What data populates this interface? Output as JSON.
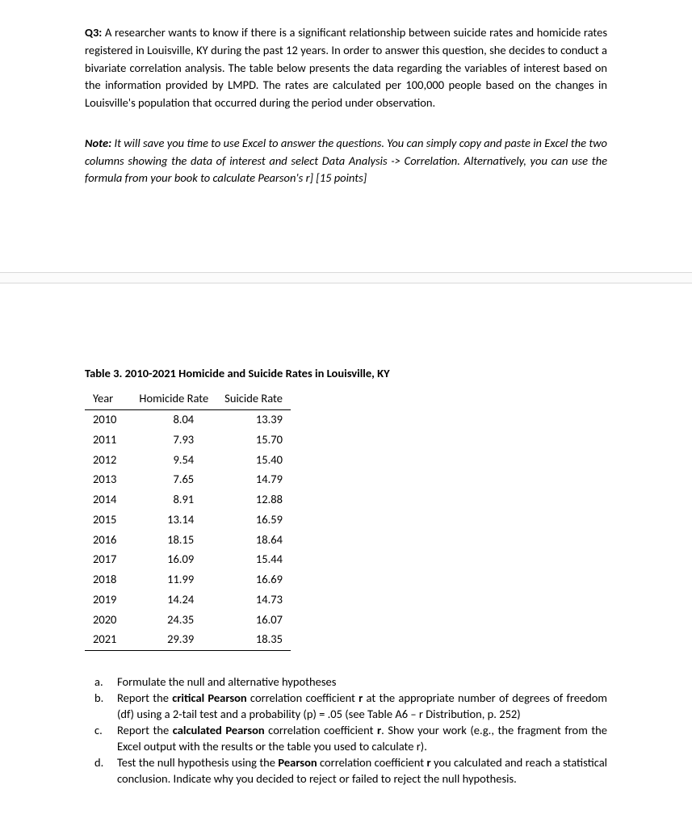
{
  "question": {
    "label": "Q3:",
    "body": "A researcher wants to know if there is a significant relationship between suicide rates and homicide rates registered in Louisville, KY during the past 12 years. In order to answer this question, she decides to conduct a bivariate correlation analysis. The table below presents the data regarding the variables of interest based on the information provided by LMPD. The rates are calculated per 100,000 people based on the changes in Louisville's population that occurred during the period under observation."
  },
  "note": {
    "label": "Note:",
    "body": "It will save you time to use Excel to answer the questions. You can simply copy and paste in Excel the two columns showing the data of interest and select Data Analysis -> Correlation. Alternatively, you can use the formula from your book to calculate Pearson's r] [15 points]"
  },
  "table": {
    "title": "Table 3. 2010-2021 Homicide and Suicide Rates in Louisville, KY",
    "columns": [
      "Year",
      "Homicide Rate",
      "Suicide Rate"
    ],
    "rows": [
      [
        "2010",
        "8.04",
        "13.39"
      ],
      [
        "2011",
        "7.93",
        "15.70"
      ],
      [
        "2012",
        "9.54",
        "15.40"
      ],
      [
        "2013",
        "7.65",
        "14.79"
      ],
      [
        "2014",
        "8.91",
        "12.88"
      ],
      [
        "2015",
        "13.14",
        "16.59"
      ],
      [
        "2016",
        "18.15",
        "18.64"
      ],
      [
        "2017",
        "16.09",
        "15.44"
      ],
      [
        "2018",
        "11.99",
        "16.69"
      ],
      [
        "2019",
        "14.24",
        "14.73"
      ],
      [
        "2020",
        "24.35",
        "16.07"
      ],
      [
        "2021",
        "29.39",
        "18.35"
      ]
    ]
  },
  "subq": {
    "a": {
      "m": "a.",
      "t1": "Formulate the null and alternative hypotheses"
    },
    "b": {
      "m": "b.",
      "t1": "Report the ",
      "t2": "critical Pearson",
      "t3": " correlation coefficient ",
      "t4": "r",
      "t5": " at the appropriate number of degrees of freedom (df) using a 2-tail test and a probability (p) = .05 (see Table A6 – r Distribution, p. 252)"
    },
    "c": {
      "m": "c.",
      "t1": "Report the ",
      "t2": "calculated Pearson",
      "t3": " correlation coefficient ",
      "t4": "r",
      "t5": ". Show your work (e.g., the fragment from the Excel output with the results or the table you used to calculate r)."
    },
    "d": {
      "m": "d.",
      "t1": "Test the null hypothesis using the ",
      "t2": "Pearson",
      "t3": " correlation coefficient ",
      "t4": "r",
      "t5": " you calculated and reach a statistical conclusion. Indicate why you decided to reject or failed to reject the null hypothesis."
    }
  }
}
